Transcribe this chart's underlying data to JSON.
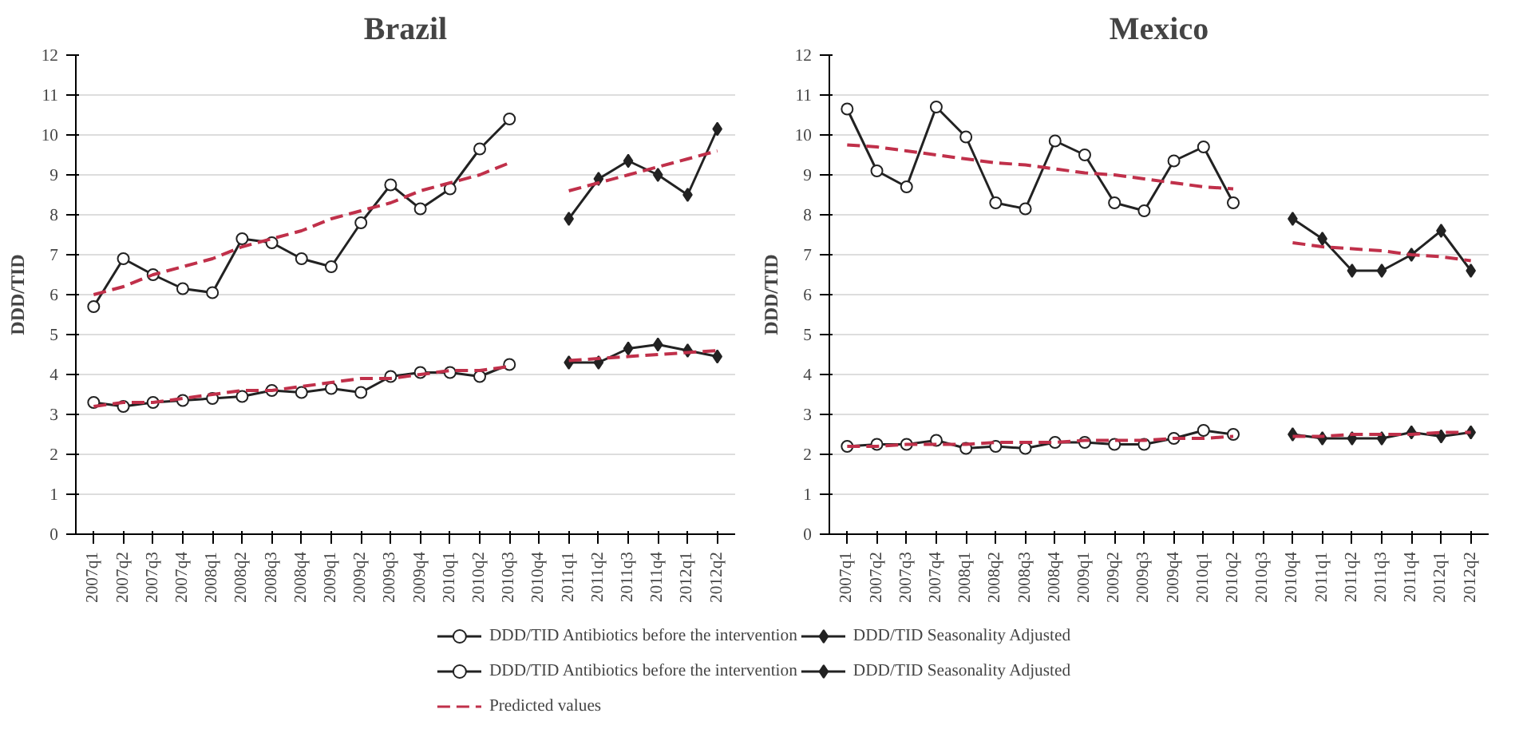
{
  "chart_data": [
    {
      "type": "line",
      "title": "Brazil",
      "ylabel": "DDD/TID",
      "categories": [
        "2007q1",
        "2007q2",
        "2007q3",
        "2007q4",
        "2008q1",
        "2008q2",
        "2008q3",
        "2008q4",
        "2009q1",
        "2009q2",
        "2009q3",
        "2009q4",
        "2010q1",
        "2010q2",
        "2010q3",
        "2010q4",
        "2011q1",
        "2011q2",
        "2011q3",
        "2011q4",
        "2012q1",
        "2012q2"
      ],
      "ylim": [
        0,
        12
      ],
      "yticks": [
        0,
        1,
        2,
        3,
        4,
        5,
        6,
        7,
        8,
        9,
        10,
        11,
        12
      ],
      "grid": "y",
      "legend": "bottom",
      "series": [
        {
          "name": "DDD/TID Antibiotics before the intervention",
          "color": "#222222",
          "marker": "circle",
          "line_style": "solid",
          "values": [
            5.7,
            6.9,
            6.5,
            6.15,
            6.05,
            7.4,
            7.3,
            6.9,
            6.7,
            7.8,
            8.75,
            8.15,
            8.65,
            9.65,
            10.4,
            null,
            null,
            null,
            null,
            null,
            null,
            null
          ]
        },
        {
          "name": "DDD/TID Seasonality Adjusted",
          "color": "#222222",
          "marker": "diamond",
          "line_style": "solid",
          "values": [
            null,
            null,
            null,
            null,
            null,
            null,
            null,
            null,
            null,
            null,
            null,
            null,
            null,
            null,
            null,
            null,
            7.9,
            8.9,
            9.35,
            9.0,
            8.5,
            10.15
          ]
        },
        {
          "name": "DDD/TID Antibiotics before the intervention",
          "color": "#222222",
          "marker": "circle",
          "line_style": "solid",
          "values": [
            3.3,
            3.2,
            3.3,
            3.35,
            3.4,
            3.45,
            3.6,
            3.55,
            3.65,
            3.55,
            3.95,
            4.05,
            4.05,
            3.95,
            4.25,
            null,
            null,
            null,
            null,
            null,
            null,
            null
          ]
        },
        {
          "name": "DDD/TID Seasonality Adjusted",
          "color": "#222222",
          "marker": "diamond",
          "line_style": "solid",
          "values": [
            null,
            null,
            null,
            null,
            null,
            null,
            null,
            null,
            null,
            null,
            null,
            null,
            null,
            null,
            null,
            null,
            4.3,
            4.3,
            4.65,
            4.75,
            4.6,
            4.45
          ]
        },
        {
          "name": "Predicted values",
          "color": "#c0304a",
          "marker": "none",
          "line_style": "dashed",
          "values": [
            6.0,
            6.2,
            6.5,
            6.7,
            6.9,
            7.2,
            7.4,
            7.6,
            7.9,
            8.1,
            8.3,
            8.6,
            8.8,
            9.0,
            9.3,
            null,
            8.6,
            8.8,
            9.0,
            9.2,
            9.4,
            9.6
          ]
        },
        {
          "color": "#c0304a",
          "marker": "none",
          "line_style": "dashed",
          "values": [
            3.2,
            3.3,
            3.3,
            3.4,
            3.5,
            3.6,
            3.6,
            3.7,
            3.8,
            3.9,
            3.9,
            4.0,
            4.1,
            4.1,
            4.2,
            null,
            4.35,
            4.4,
            4.45,
            4.5,
            4.55,
            4.6
          ]
        }
      ]
    },
    {
      "type": "line",
      "title": "Mexico",
      "ylabel": "DDD/TID",
      "categories": [
        "2007q1",
        "2007q2",
        "2007q3",
        "2007q4",
        "2008q1",
        "2008q2",
        "2008q3",
        "2008q4",
        "2009q1",
        "2009q2",
        "2009q3",
        "2009q4",
        "2010q1",
        "2010q2",
        "2010q3",
        "2010q4",
        "2011q1",
        "2011q2",
        "2011q3",
        "2011q4",
        "2012q1",
        "2012q2"
      ],
      "ylim": [
        0,
        12
      ],
      "yticks": [
        0,
        1,
        2,
        3,
        4,
        5,
        6,
        7,
        8,
        9,
        10,
        11,
        12
      ],
      "grid": "y",
      "series": [
        {
          "color": "#222222",
          "marker": "circle",
          "line_style": "solid",
          "values": [
            10.65,
            9.1,
            8.7,
            10.7,
            9.95,
            8.3,
            8.15,
            9.85,
            9.5,
            8.3,
            8.1,
            9.35,
            9.7,
            8.3,
            null,
            null,
            null,
            null,
            null,
            null,
            null,
            null
          ]
        },
        {
          "color": "#222222",
          "marker": "diamond",
          "line_style": "solid",
          "values": [
            null,
            null,
            null,
            null,
            null,
            null,
            null,
            null,
            null,
            null,
            null,
            null,
            null,
            null,
            null,
            7.9,
            7.4,
            6.6,
            6.6,
            7.0,
            7.6,
            6.6
          ]
        },
        {
          "color": "#222222",
          "marker": "circle",
          "line_style": "solid",
          "values": [
            2.2,
            2.25,
            2.25,
            2.35,
            2.15,
            2.2,
            2.15,
            2.3,
            2.3,
            2.25,
            2.25,
            2.4,
            2.6,
            2.5,
            null,
            null,
            null,
            null,
            null,
            null,
            null,
            null
          ]
        },
        {
          "color": "#222222",
          "marker": "diamond",
          "line_style": "solid",
          "values": [
            null,
            null,
            null,
            null,
            null,
            null,
            null,
            null,
            null,
            null,
            null,
            null,
            null,
            null,
            null,
            2.5,
            2.4,
            2.4,
            2.4,
            2.55,
            2.45,
            2.55
          ]
        },
        {
          "color": "#c0304a",
          "marker": "none",
          "line_style": "dashed",
          "values": [
            9.75,
            9.7,
            9.6,
            9.5,
            9.4,
            9.3,
            9.25,
            9.15,
            9.05,
            9.0,
            8.9,
            8.8,
            8.7,
            8.65,
            null,
            7.3,
            7.2,
            7.15,
            7.1,
            7.0,
            6.95,
            6.85
          ]
        },
        {
          "color": "#c0304a",
          "marker": "none",
          "line_style": "dashed",
          "values": [
            2.2,
            2.2,
            2.25,
            2.25,
            2.25,
            2.3,
            2.3,
            2.3,
            2.35,
            2.35,
            2.35,
            2.4,
            2.4,
            2.45,
            null,
            2.45,
            2.45,
            2.5,
            2.5,
            2.5,
            2.55,
            2.55
          ]
        }
      ]
    }
  ]
}
